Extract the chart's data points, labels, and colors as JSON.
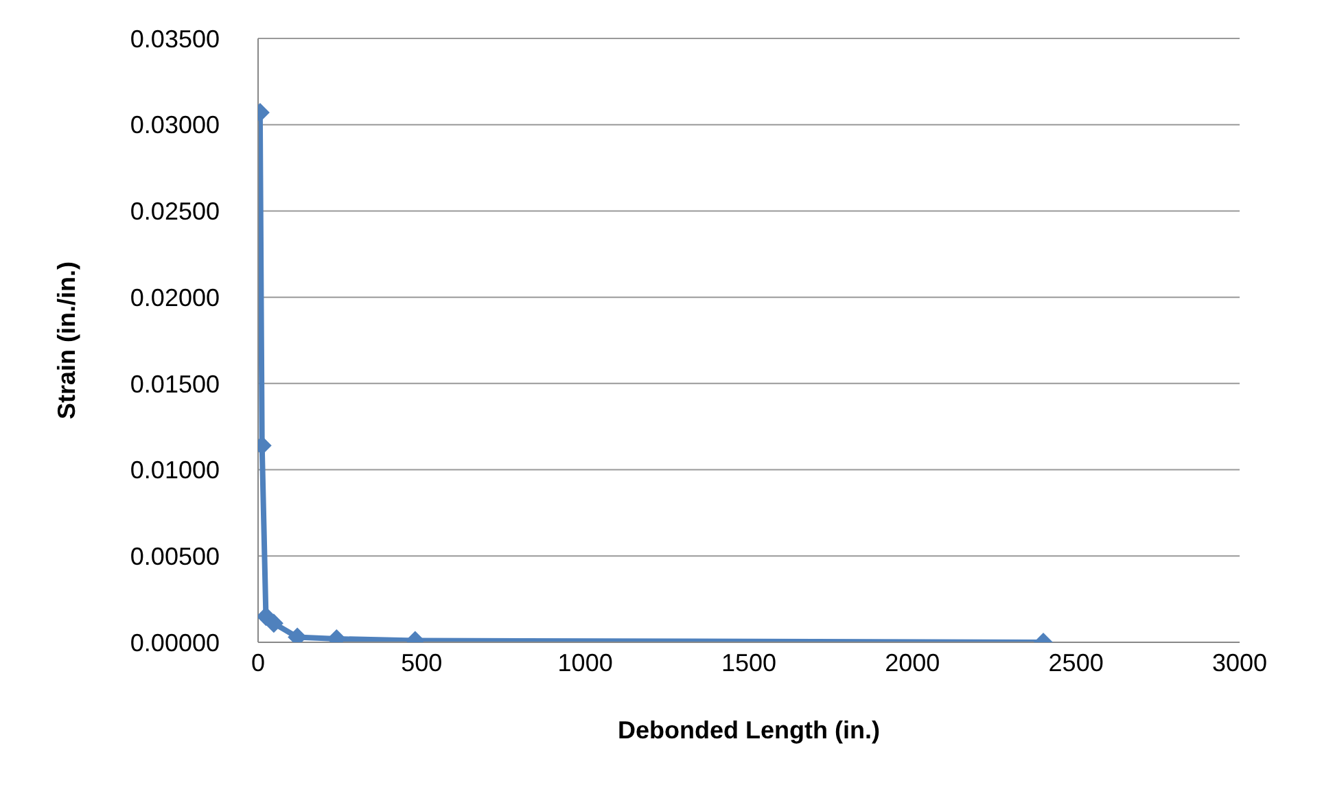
{
  "chart_data": {
    "type": "line",
    "xlabel": "Debonded Length (in.)",
    "ylabel": "Strain (in./in.)",
    "x": [
      6,
      12,
      24,
      48,
      120,
      240,
      480,
      2400
    ],
    "series": [
      {
        "color": "#4f81bd",
        "values": [
          0.0307,
          0.0114,
          0.0015,
          0.0011,
          0.0003,
          0.0002,
          0.0001,
          0
        ]
      }
    ],
    "xlim": [
      0,
      3000
    ],
    "xticks": [
      0,
      500,
      1000,
      1500,
      2000,
      2500,
      3000
    ],
    "ylim": [
      0,
      0.035
    ],
    "yticks": [
      {
        "value": 0,
        "label": "0.00000"
      },
      {
        "value": 0.005,
        "label": "0.00500"
      },
      {
        "value": 0.01,
        "label": "0.01000"
      },
      {
        "value": 0.015,
        "label": "0.01500"
      },
      {
        "value": 0.02,
        "label": "0.02000"
      },
      {
        "value": 0.025,
        "label": "0.02500"
      },
      {
        "value": 0.03,
        "label": "0.03000"
      },
      {
        "value": 0.035,
        "label": "0.03500"
      }
    ],
    "grid": "y",
    "marker": "diamond",
    "line_style": "solid",
    "legend": false
  }
}
